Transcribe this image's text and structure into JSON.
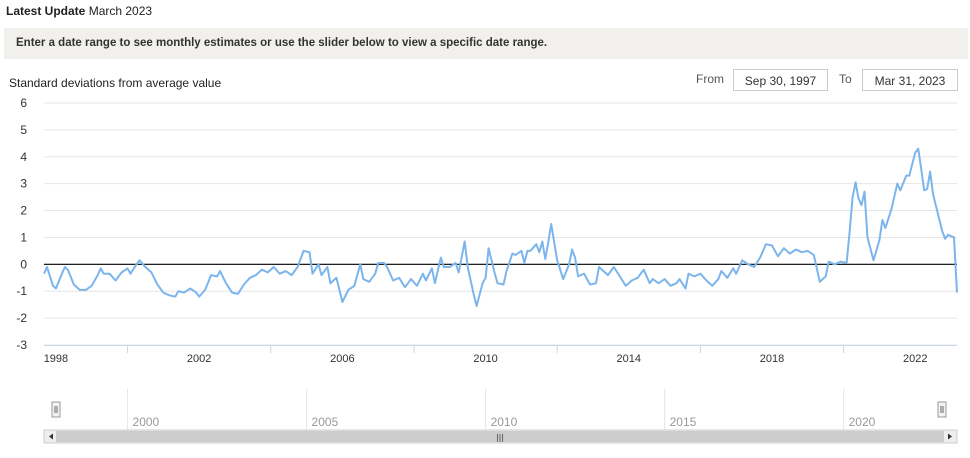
{
  "header": {
    "latest_label": "Latest Update",
    "latest_value": "March 2023"
  },
  "instructions": "Enter a date range to see monthly estimates or use the slider below to view a specific date range.",
  "range": {
    "from_label": "From",
    "from_value": "Sep 30, 1997",
    "to_label": "To",
    "to_value": "Mar 31, 2023"
  },
  "navigator": {
    "labels": [
      "2000",
      "2005",
      "2010",
      "2015",
      "2020"
    ],
    "handle_glyph": "|||"
  },
  "colors": {
    "line": "#7cb5ec",
    "zero": "#000000",
    "grid": "#e6e6e6"
  },
  "chart_data": {
    "type": "line",
    "ylabel": "Standard deviations from average value",
    "ylim": [
      -3,
      6
    ],
    "yticks": [
      6,
      5,
      4,
      3,
      2,
      1,
      0,
      -1,
      -2,
      -3
    ],
    "xticks": [
      "1998",
      "2002",
      "2006",
      "2010",
      "2014",
      "2018",
      "2022"
    ],
    "x_range": [
      "1997-09",
      "2023-03"
    ],
    "grid": true,
    "series": [
      {
        "values": [
          [
            "1997-09",
            -0.35
          ],
          [
            "1997-10",
            -0.1
          ],
          [
            "1997-11",
            -0.45
          ],
          [
            "1997-12",
            -0.8
          ],
          [
            "1998-01",
            -0.9
          ],
          [
            "1998-03",
            -0.35
          ],
          [
            "1998-04",
            -0.1
          ],
          [
            "1998-05",
            -0.2
          ],
          [
            "1998-07",
            -0.75
          ],
          [
            "1998-09",
            -0.95
          ],
          [
            "1998-11",
            -0.95
          ],
          [
            "1999-01",
            -0.8
          ],
          [
            "1999-03",
            -0.4
          ],
          [
            "1999-04",
            -0.15
          ],
          [
            "1999-05",
            -0.35
          ],
          [
            "1999-07",
            -0.35
          ],
          [
            "1999-09",
            -0.6
          ],
          [
            "1999-11",
            -0.3
          ],
          [
            "2000-01",
            -0.15
          ],
          [
            "2000-02",
            -0.35
          ],
          [
            "2000-04",
            0.0
          ],
          [
            "2000-05",
            0.15
          ],
          [
            "2000-07",
            -0.1
          ],
          [
            "2000-09",
            -0.3
          ],
          [
            "2000-11",
            -0.75
          ],
          [
            "2001-01",
            -1.05
          ],
          [
            "2001-03",
            -1.15
          ],
          [
            "2001-05",
            -1.2
          ],
          [
            "2001-06",
            -1.0
          ],
          [
            "2001-08",
            -1.05
          ],
          [
            "2001-10",
            -0.9
          ],
          [
            "2001-12",
            -1.05
          ],
          [
            "2002-01",
            -1.2
          ],
          [
            "2002-03",
            -0.95
          ],
          [
            "2002-05",
            -0.4
          ],
          [
            "2002-07",
            -0.45
          ],
          [
            "2002-08",
            -0.25
          ],
          [
            "2002-10",
            -0.7
          ],
          [
            "2002-12",
            -1.05
          ],
          [
            "2003-02",
            -1.1
          ],
          [
            "2003-04",
            -0.75
          ],
          [
            "2003-06",
            -0.5
          ],
          [
            "2003-08",
            -0.4
          ],
          [
            "2003-10",
            -0.2
          ],
          [
            "2003-12",
            -0.3
          ],
          [
            "2004-02",
            -0.1
          ],
          [
            "2004-04",
            -0.35
          ],
          [
            "2004-06",
            -0.25
          ],
          [
            "2004-08",
            -0.4
          ],
          [
            "2004-10",
            -0.1
          ],
          [
            "2004-12",
            0.5
          ],
          [
            "2005-02",
            0.45
          ],
          [
            "2005-03",
            -0.35
          ],
          [
            "2005-05",
            0.0
          ],
          [
            "2005-06",
            -0.4
          ],
          [
            "2005-08",
            -0.1
          ],
          [
            "2005-09",
            -0.7
          ],
          [
            "2005-11",
            -0.5
          ],
          [
            "2006-01",
            -1.4
          ],
          [
            "2006-03",
            -0.95
          ],
          [
            "2006-05",
            -0.8
          ],
          [
            "2006-07",
            0.0
          ],
          [
            "2006-08",
            -0.55
          ],
          [
            "2006-10",
            -0.65
          ],
          [
            "2006-12",
            -0.35
          ],
          [
            "2007-01",
            0.05
          ],
          [
            "2007-03",
            0.05
          ],
          [
            "2007-04",
            -0.1
          ],
          [
            "2007-06",
            -0.6
          ],
          [
            "2007-08",
            -0.5
          ],
          [
            "2007-10",
            -0.85
          ],
          [
            "2007-12",
            -0.55
          ],
          [
            "2008-02",
            -0.8
          ],
          [
            "2008-04",
            -0.35
          ],
          [
            "2008-05",
            -0.6
          ],
          [
            "2008-07",
            -0.15
          ],
          [
            "2008-08",
            -0.7
          ],
          [
            "2008-10",
            0.25
          ],
          [
            "2008-11",
            -0.1
          ],
          [
            "2009-01",
            -0.1
          ],
          [
            "2009-03",
            0.05
          ],
          [
            "2009-04",
            -0.3
          ],
          [
            "2009-06",
            0.85
          ],
          [
            "2009-07",
            -0.1
          ],
          [
            "2009-09",
            -1.1
          ],
          [
            "2009-10",
            -1.55
          ],
          [
            "2009-12",
            -0.7
          ],
          [
            "2010-01",
            -0.5
          ],
          [
            "2010-02",
            0.6
          ],
          [
            "2010-04",
            -0.3
          ],
          [
            "2010-05",
            -0.7
          ],
          [
            "2010-07",
            -0.75
          ],
          [
            "2010-08",
            -0.25
          ],
          [
            "2010-10",
            0.4
          ],
          [
            "2010-11",
            0.35
          ],
          [
            "2011-01",
            0.5
          ],
          [
            "2011-02",
            0.05
          ],
          [
            "2011-03",
            0.5
          ],
          [
            "2011-04",
            0.5
          ],
          [
            "2011-06",
            0.75
          ],
          [
            "2011-07",
            0.45
          ],
          [
            "2011-08",
            0.85
          ],
          [
            "2011-09",
            0.2
          ],
          [
            "2011-10",
            0.8
          ],
          [
            "2011-11",
            1.5
          ],
          [
            "2012-01",
            0.15
          ],
          [
            "2012-03",
            -0.55
          ],
          [
            "2012-05",
            0.0
          ],
          [
            "2012-06",
            0.55
          ],
          [
            "2012-07",
            0.25
          ],
          [
            "2012-08",
            -0.45
          ],
          [
            "2012-10",
            -0.35
          ],
          [
            "2012-12",
            -0.75
          ],
          [
            "2013-02",
            -0.7
          ],
          [
            "2013-03",
            -0.1
          ],
          [
            "2013-05",
            -0.3
          ],
          [
            "2013-06",
            -0.4
          ],
          [
            "2013-08",
            -0.1
          ],
          [
            "2013-10",
            -0.45
          ],
          [
            "2013-12",
            -0.8
          ],
          [
            "2014-02",
            -0.6
          ],
          [
            "2014-04",
            -0.5
          ],
          [
            "2014-06",
            -0.2
          ],
          [
            "2014-08",
            -0.7
          ],
          [
            "2014-09",
            -0.55
          ],
          [
            "2014-11",
            -0.7
          ],
          [
            "2015-01",
            -0.55
          ],
          [
            "2015-03",
            -0.8
          ],
          [
            "2015-05",
            -0.7
          ],
          [
            "2015-06",
            -0.55
          ],
          [
            "2015-08",
            -0.9
          ],
          [
            "2015-09",
            -0.35
          ],
          [
            "2015-11",
            -0.45
          ],
          [
            "2016-01",
            -0.35
          ],
          [
            "2016-03",
            -0.6
          ],
          [
            "2016-05",
            -0.8
          ],
          [
            "2016-07",
            -0.55
          ],
          [
            "2016-08",
            -0.25
          ],
          [
            "2016-10",
            -0.5
          ],
          [
            "2016-12",
            -0.15
          ],
          [
            "2017-01",
            -0.35
          ],
          [
            "2017-03",
            0.15
          ],
          [
            "2017-05",
            0.0
          ],
          [
            "2017-07",
            -0.1
          ],
          [
            "2017-09",
            0.25
          ],
          [
            "2017-11",
            0.75
          ],
          [
            "2018-01",
            0.7
          ],
          [
            "2018-03",
            0.3
          ],
          [
            "2018-05",
            0.6
          ],
          [
            "2018-07",
            0.4
          ],
          [
            "2018-09",
            0.55
          ],
          [
            "2018-11",
            0.45
          ],
          [
            "2019-01",
            0.5
          ],
          [
            "2019-03",
            0.35
          ],
          [
            "2019-05",
            -0.65
          ],
          [
            "2019-07",
            -0.45
          ],
          [
            "2019-08",
            0.1
          ],
          [
            "2019-10",
            0.0
          ],
          [
            "2019-12",
            0.1
          ],
          [
            "2020-02",
            0.05
          ],
          [
            "2020-03",
            1.2
          ],
          [
            "2020-04",
            2.5
          ],
          [
            "2020-05",
            3.05
          ],
          [
            "2020-06",
            2.45
          ],
          [
            "2020-07",
            2.2
          ],
          [
            "2020-08",
            2.7
          ],
          [
            "2020-09",
            1.0
          ],
          [
            "2020-11",
            0.15
          ],
          [
            "2021-01",
            0.9
          ],
          [
            "2021-02",
            1.65
          ],
          [
            "2021-03",
            1.35
          ],
          [
            "2021-05",
            2.05
          ],
          [
            "2021-07",
            3.0
          ],
          [
            "2021-08",
            2.75
          ],
          [
            "2021-10",
            3.3
          ],
          [
            "2021-11",
            3.3
          ],
          [
            "2022-01",
            4.15
          ],
          [
            "2022-02",
            4.3
          ],
          [
            "2022-03",
            3.55
          ],
          [
            "2022-04",
            2.75
          ],
          [
            "2022-05",
            2.8
          ],
          [
            "2022-06",
            3.45
          ],
          [
            "2022-07",
            2.6
          ],
          [
            "2022-09",
            1.7
          ],
          [
            "2022-10",
            1.25
          ],
          [
            "2022-11",
            0.95
          ],
          [
            "2022-12",
            1.1
          ],
          [
            "2023-02",
            1.0
          ],
          [
            "2023-03",
            -1.05
          ]
        ]
      }
    ]
  }
}
